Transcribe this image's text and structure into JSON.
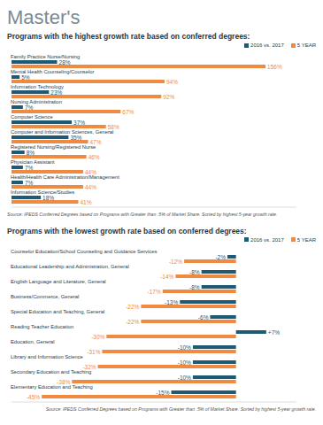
{
  "title": "Master's",
  "chart_data": [
    {
      "type": "bar",
      "orientation": "horizontal",
      "title": "Programs with the highest growth rate based on conferred degrees:",
      "annotation": "Source: IPEDS Conferred Degrees based on Programs with Greater than .5% of Market Share. Sorted by highest 5-year growth rate.",
      "categories": [
        "Family Practice Nurse/Nursing",
        "Mental Health Counseling/Counselor",
        "Information Technology",
        "Nursing Administration",
        "Computer Science",
        "Computer and Information Sciences, General",
        "Registered Nursing/Registered Nurse",
        "Physician Assistant",
        "Health/Health Care Administration/Management",
        "Information Science/Studies"
      ],
      "series": [
        {
          "name": "2016 vs. 2017",
          "color": "#1e5a74",
          "values": [
            28,
            5,
            23,
            7,
            37,
            35,
            8,
            7,
            7,
            18
          ],
          "value_labels": [
            "28%",
            "5%",
            "23%",
            "7%",
            "37%",
            "35%",
            "8%",
            "7%",
            "7%",
            "18%"
          ]
        },
        {
          "name": "5 YEAR",
          "color": "#f08a41",
          "values": [
            156,
            94,
            92,
            67,
            58,
            47,
            46,
            44,
            44,
            41
          ],
          "value_labels": [
            "156%",
            "94%",
            "92%",
            "67%",
            "58%",
            "47%",
            "46%",
            "44%",
            "44%",
            "41%"
          ]
        }
      ],
      "xlim": [
        0,
        175
      ],
      "tick_labels": "y",
      "data_labels": true,
      "legend": "top right"
    },
    {
      "type": "bar",
      "orientation": "horizontal",
      "title": "Programs with the lowest growth rate based on conferred degrees:",
      "annotation": "Source: IPEDS Conferred Degrees based on Programs with Greater than .5% of Market Share. Sorted by highest 5-year growth rate.",
      "categories": [
        "Counselor Education/School Counseling and Guidance Services",
        "Educational Leadership and Administration, General",
        "English Language and Literature, General",
        "Business/Commerce, General",
        "Special Education and Teaching, General",
        "Reading Teacher Education",
        "Education, General",
        "Library and Information Science",
        "Secondary Education and Teaching",
        "Elementary Education and Teaching"
      ],
      "series": [
        {
          "name": "2016 vs. 2017",
          "color": "#1e5a74",
          "values": [
            -2,
            -8,
            -8,
            -13,
            -6,
            7,
            -10,
            -10,
            -10,
            -15
          ],
          "value_labels": [
            "-2%",
            "-8%",
            "-8%",
            "-13%",
            "-6%",
            "+7%",
            "-10%",
            "-10%",
            "-10%",
            "-15%"
          ]
        },
        {
          "name": "5 YEAR",
          "color": "#f08a41",
          "values": [
            -12,
            -14,
            -17,
            -22,
            -22,
            -30,
            -31,
            -32,
            -38,
            -45
          ],
          "value_labels": [
            "-12%",
            "-14%",
            "-17%",
            "-22%",
            "-22%",
            "-30%",
            "-31%",
            "-32%",
            "-38%",
            "-45%"
          ]
        }
      ],
      "xlim": [
        -52,
        14
      ],
      "tick_labels": "y",
      "data_labels": true,
      "legend": "top right"
    }
  ]
}
